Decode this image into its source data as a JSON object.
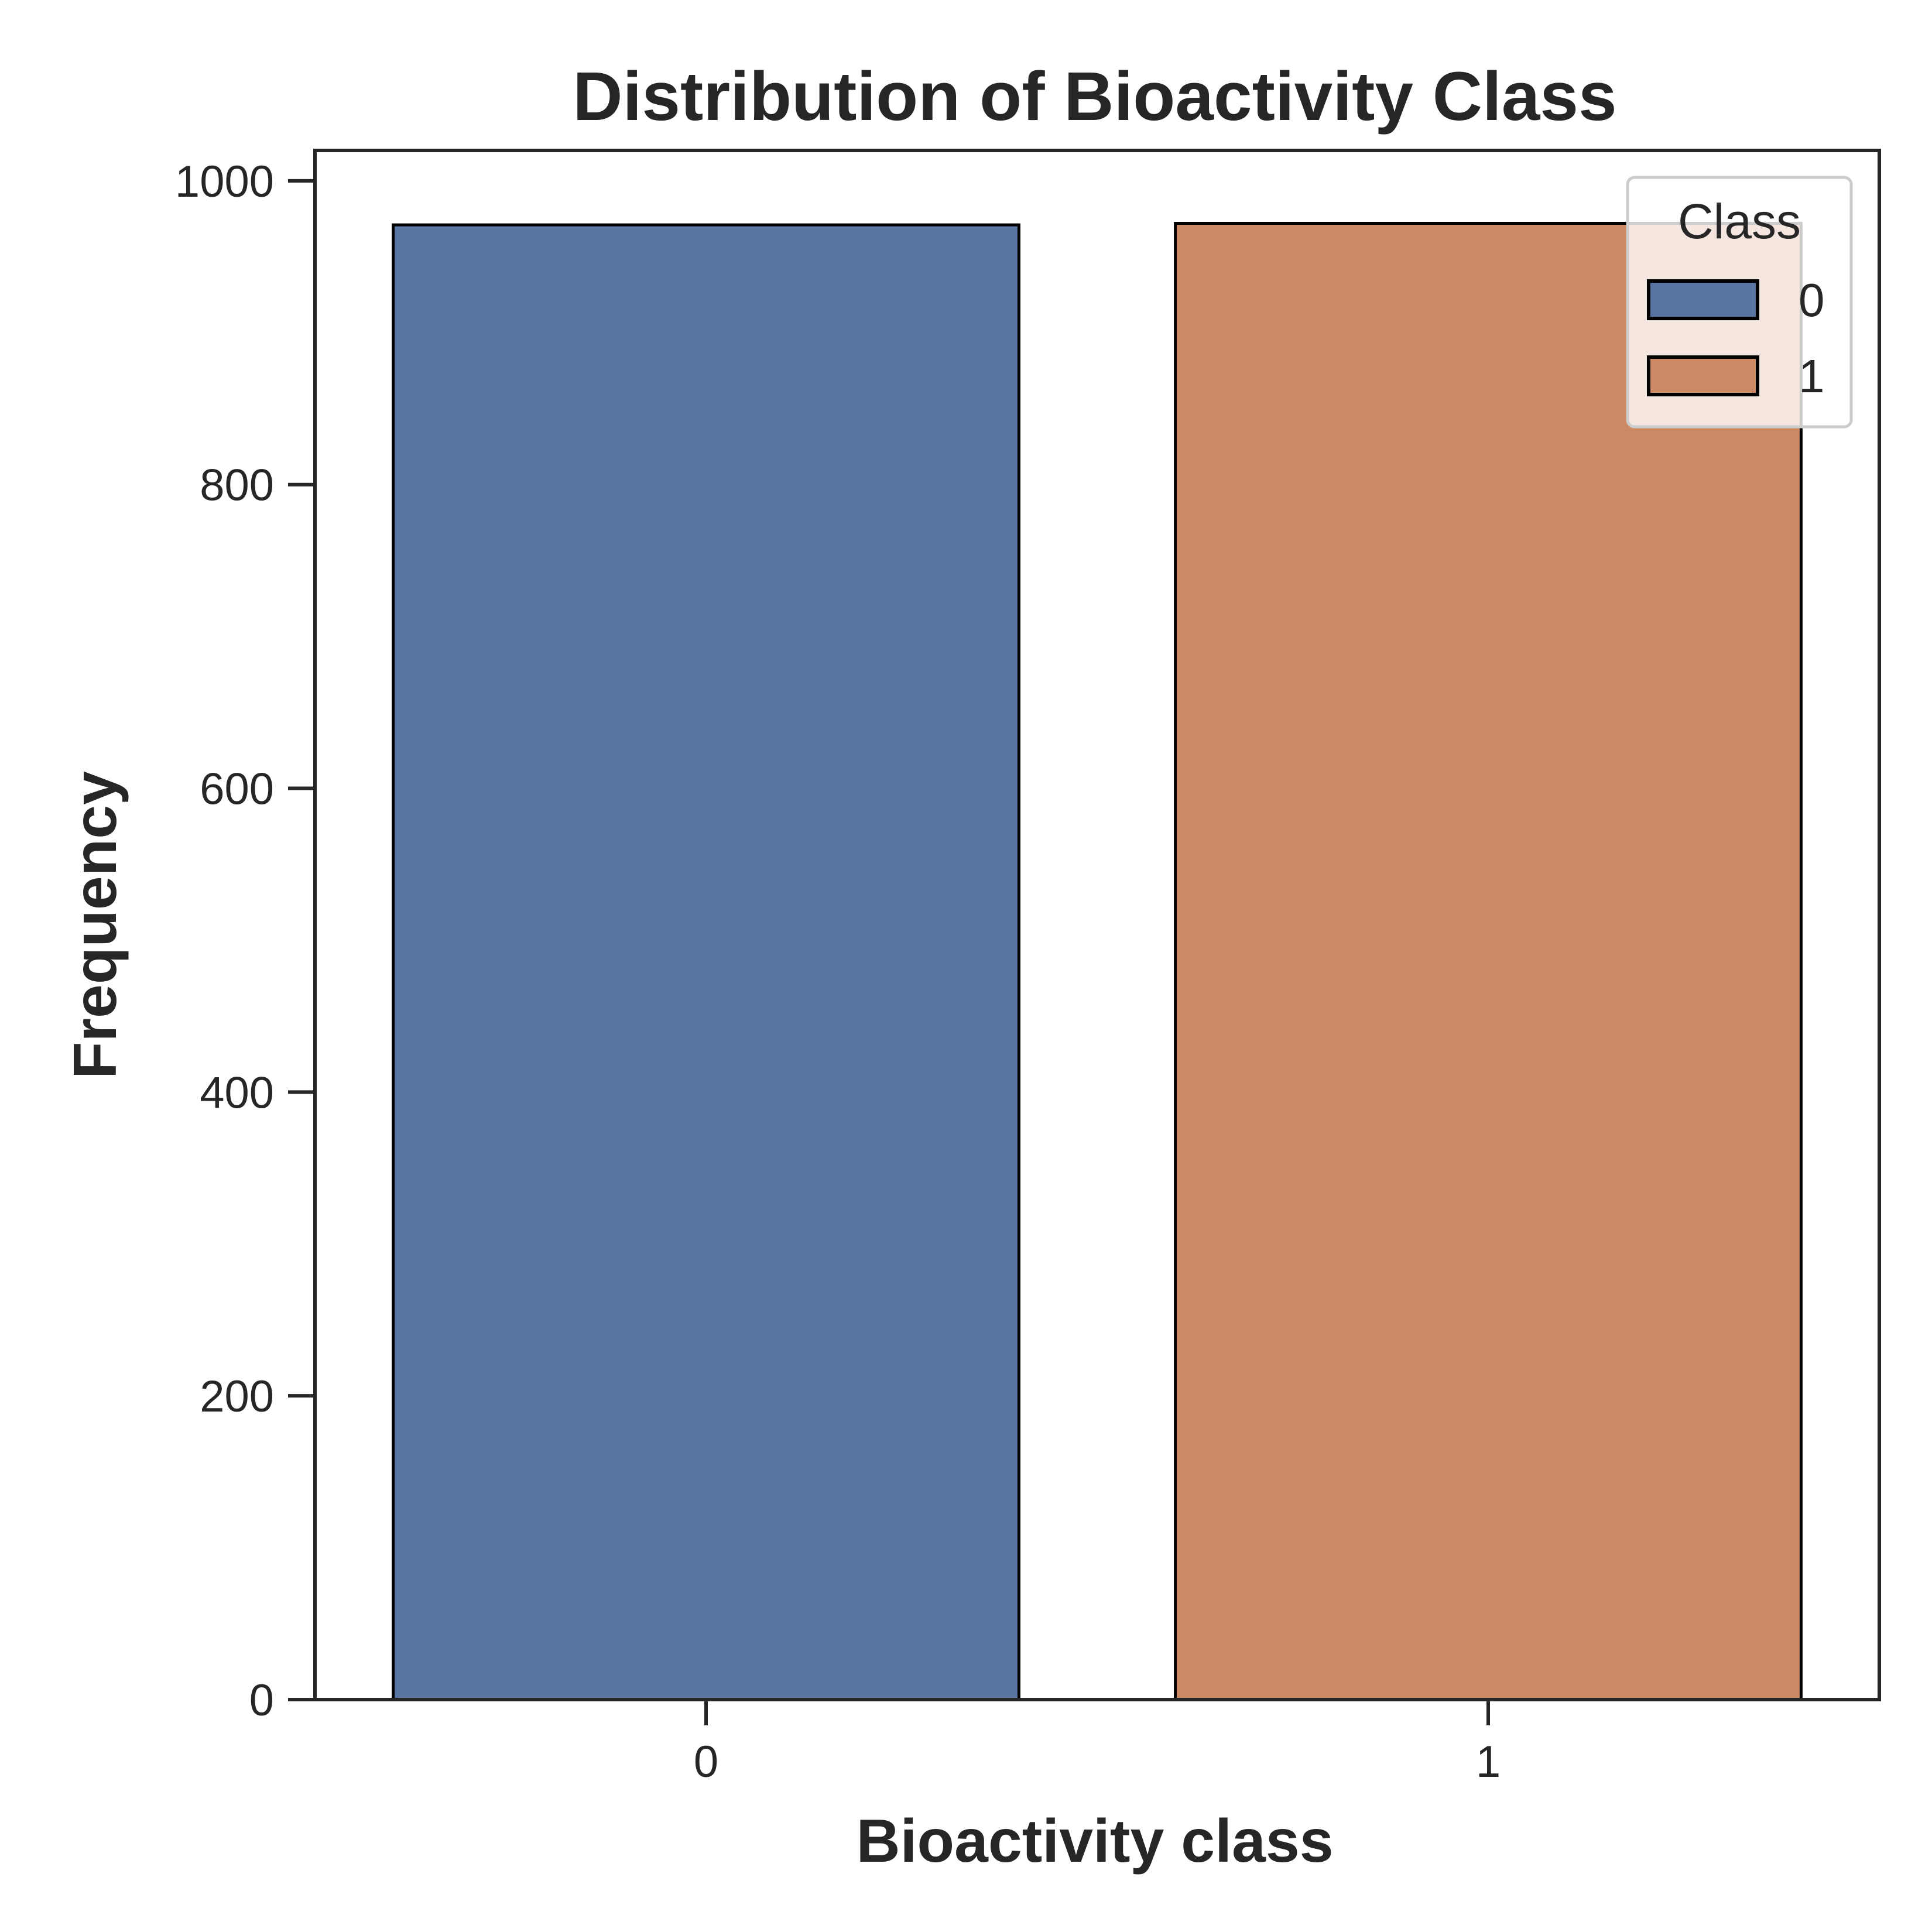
{
  "chart_data": {
    "type": "bar",
    "title": "Distribution of Bioactivity Class",
    "xlabel": "Bioactivity class",
    "ylabel": "Frequency",
    "categories": [
      "0",
      "1"
    ],
    "values": [
      971,
      972
    ],
    "ylim": [
      0,
      1020
    ],
    "yticks": [
      0,
      200,
      400,
      600,
      800,
      1000
    ],
    "colors": [
      "#5975a4",
      "#cc8963"
    ],
    "grid": false,
    "legend": {
      "title": "Class",
      "placement": "top-right",
      "entries": [
        "0",
        "1"
      ]
    }
  }
}
